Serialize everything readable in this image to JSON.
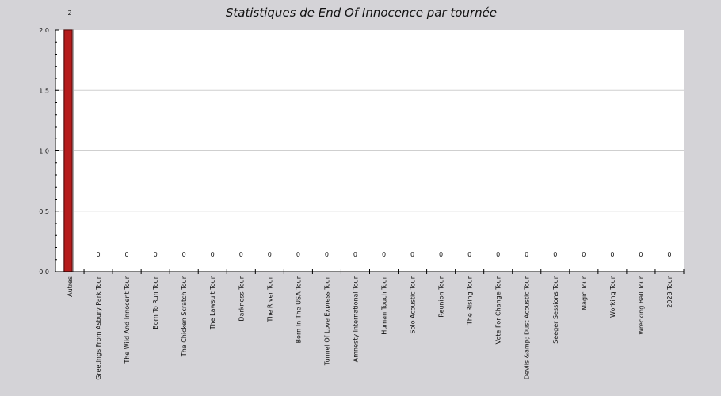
{
  "chart_data": {
    "type": "bar",
    "title": "Statistiques de End Of Innocence par tournée",
    "xlabel": "",
    "ylabel": "",
    "ylim": [
      0,
      2
    ],
    "yticks": [
      "0.0",
      "0.5",
      "1.0",
      "1.5",
      "2.0"
    ],
    "grid": true,
    "colors": {
      "bar": "#b51c1c",
      "bar_edge": "#5a0a0a",
      "bar_shadow": "#a9a9a9",
      "plot_bg": "#ffffff",
      "page_bg": "#d4d3d7",
      "grid": "#cfcfcf"
    },
    "categories": [
      "Autres",
      "Greetings From Asbury Park Tour",
      "The Wild And Innocent Tour",
      "Born To Run Tour",
      "The Chicken Scratch Tour",
      "The Lawsuit Tour",
      "Darkness Tour",
      "The River Tour",
      "Born In The USA Tour",
      "Tunnel Of Love Express Tour",
      "Amnesty International Tour",
      "Human Touch Tour",
      "Solo Acoustic Tour",
      "Reunion Tour",
      "The Rising Tour",
      "Vote For Change Tour",
      "Devils &amp; Dust Acoustic Tour",
      "Seeger Sessions Tour",
      "Magic Tour",
      "Working Tour",
      "Wrecking Ball Tour",
      "2023 Tour"
    ],
    "values": [
      2,
      0,
      0,
      0,
      0,
      0,
      0,
      0,
      0,
      0,
      0,
      0,
      0,
      0,
      0,
      0,
      0,
      0,
      0,
      0,
      0,
      0
    ],
    "data_labels": [
      "2",
      "0",
      "0",
      "0",
      "0",
      "0",
      "0",
      "0",
      "0",
      "0",
      "0",
      "0",
      "0",
      "0",
      "0",
      "0",
      "0",
      "0",
      "0",
      "0",
      "0",
      "0"
    ]
  }
}
